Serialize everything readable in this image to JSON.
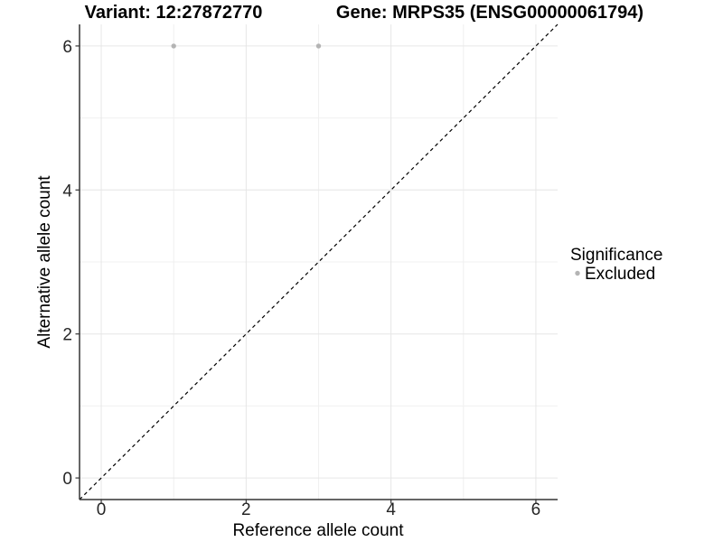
{
  "chart_data": {
    "type": "scatter",
    "title_left": "Variant: 12:27872770",
    "title_right": "Gene: MRPS35 (ENSG00000061794)",
    "xlabel": "Reference allele count",
    "ylabel": "Alternative allele count",
    "xlim": [
      -0.3,
      6.3
    ],
    "ylim": [
      -0.3,
      6.3
    ],
    "x_ticks": [
      0,
      2,
      4,
      6
    ],
    "y_ticks": [
      0,
      2,
      4,
      6
    ],
    "x_minor_ticks": [
      1,
      3,
      5
    ],
    "y_minor_ticks": [
      1,
      3,
      5
    ],
    "grid": true,
    "series": [
      {
        "name": "Excluded",
        "color": "#b4b4b4",
        "marker": "circle",
        "points": [
          {
            "x": 1,
            "y": 6
          },
          {
            "x": 3,
            "y": 6
          }
        ]
      }
    ],
    "reference_line": {
      "kind": "identity",
      "from": [
        -0.3,
        -0.3
      ],
      "to": [
        6.3,
        6.3
      ],
      "style": "dashed",
      "color": "#000000"
    },
    "legend": {
      "title": "Significance",
      "position": "right",
      "entries": [
        {
          "label": "Excluded",
          "color": "#b4b4b4",
          "marker": "circle"
        }
      ]
    },
    "style": {
      "background": "#ffffff",
      "grid_major_color": "#e6e6e6",
      "grid_minor_color": "#f0f0f0",
      "axis_color": "#333333",
      "point_radius": 2.7
    }
  }
}
